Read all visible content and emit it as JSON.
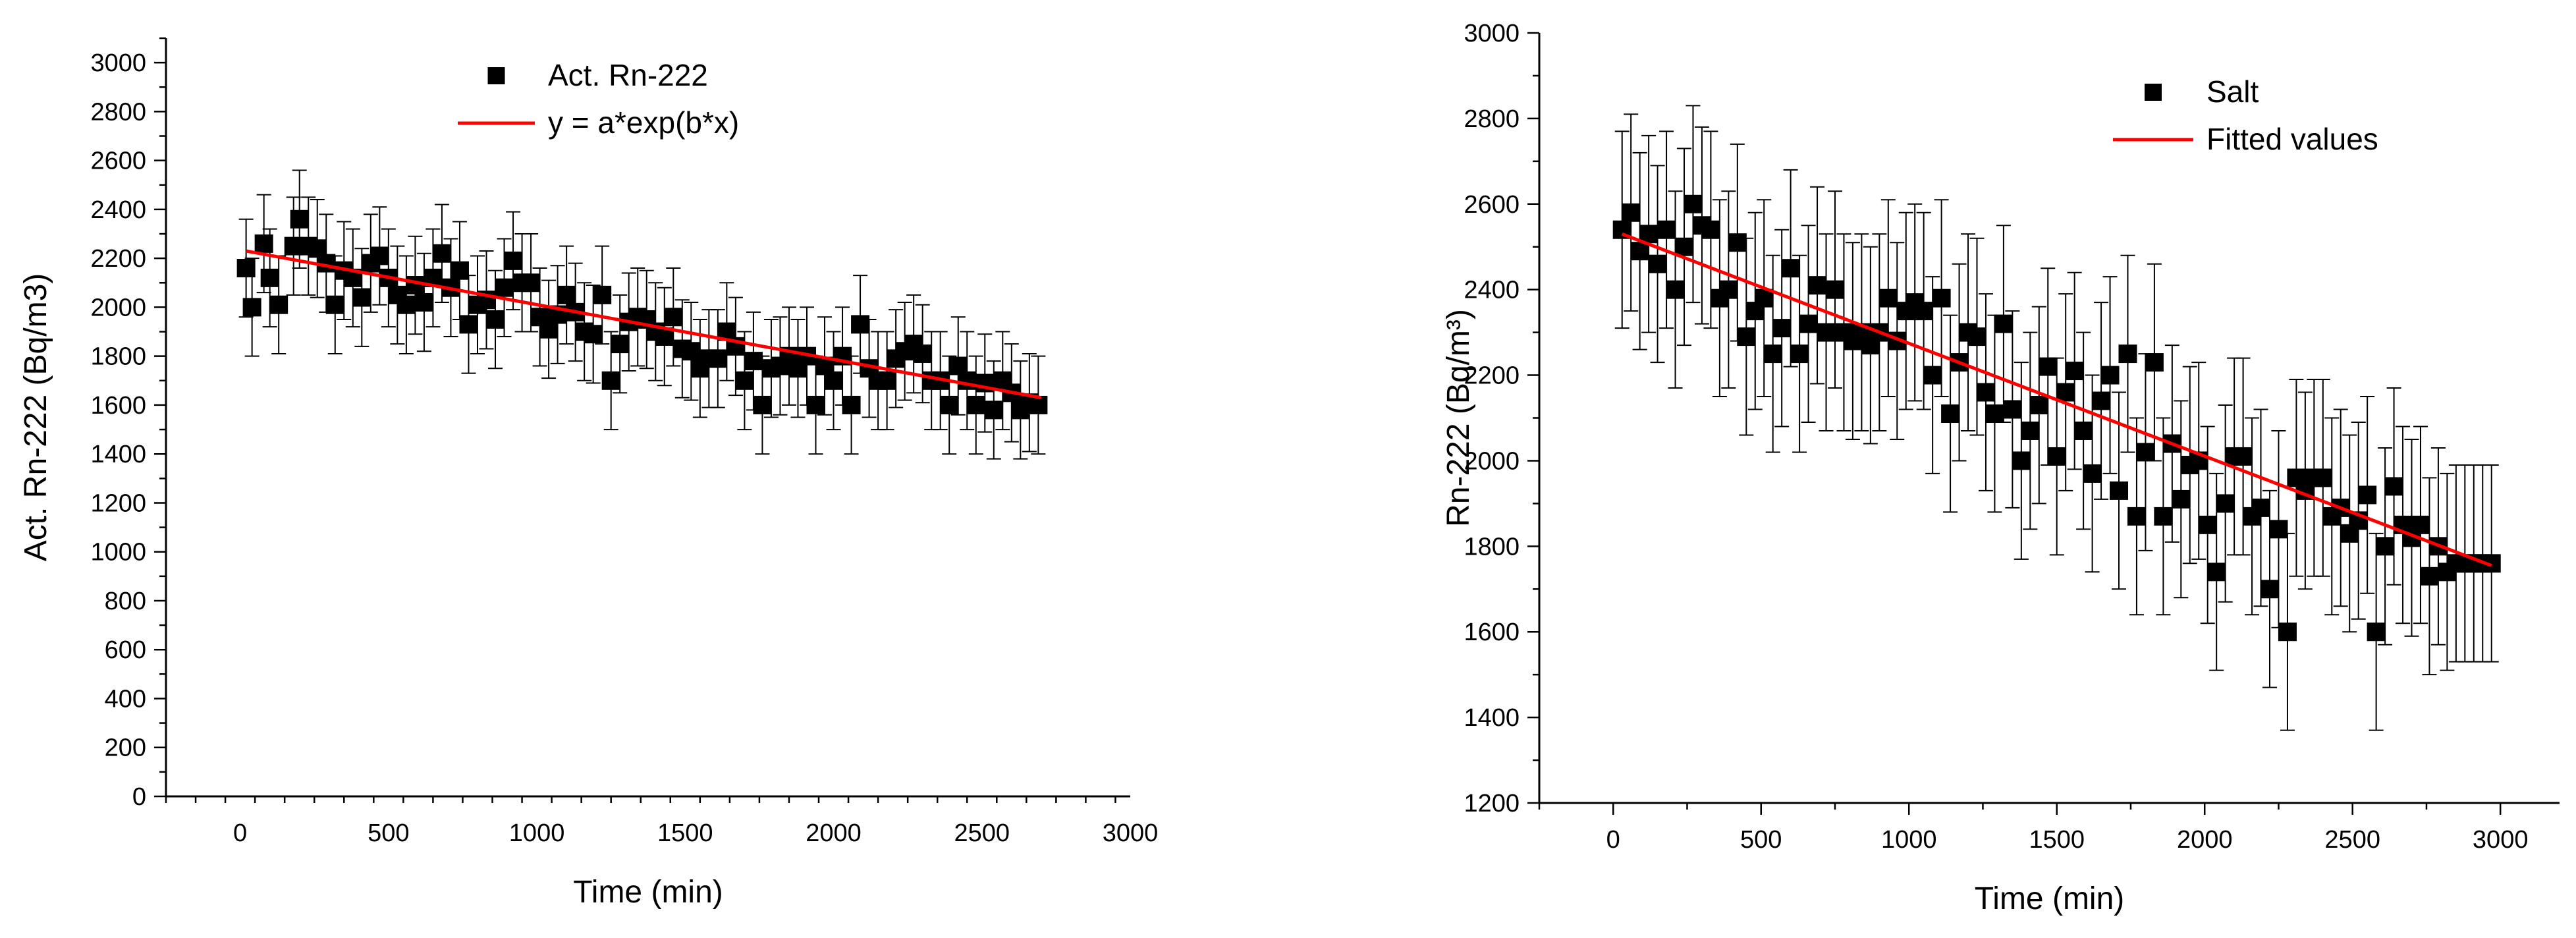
{
  "chart_data": [
    {
      "type": "scatter",
      "xlabel": "Time (min)",
      "ylabel": "Act. Rn-222 (Bq/m3)",
      "xlim": [
        -250,
        3000
      ],
      "ylim": [
        0,
        3100
      ],
      "xticks": [
        0,
        500,
        1000,
        1500,
        2000,
        2500,
        3000
      ],
      "yticks": [
        0,
        200,
        400,
        600,
        800,
        1000,
        1200,
        1400,
        1600,
        1800,
        2000,
        2200,
        2400,
        2600,
        2800,
        3000
      ],
      "legend": {
        "position": "top-center",
        "entries": [
          "Act. Rn-222",
          "y = a*exp(b*x)"
        ]
      },
      "series": [
        {
          "name": "Act. Rn-222",
          "kind": "scatter-errorbar",
          "color": "#000000",
          "x": [
            20,
            40,
            80,
            100,
            130,
            180,
            200,
            230,
            260,
            290,
            320,
            350,
            380,
            410,
            440,
            470,
            500,
            530,
            560,
            590,
            620,
            650,
            680,
            710,
            740,
            770,
            800,
            830,
            860,
            890,
            920,
            950,
            980,
            1010,
            1040,
            1070,
            1100,
            1130,
            1160,
            1190,
            1220,
            1250,
            1280,
            1310,
            1340,
            1370,
            1400,
            1430,
            1460,
            1490,
            1520,
            1550,
            1580,
            1610,
            1640,
            1670,
            1700,
            1730,
            1760,
            1790,
            1820,
            1850,
            1880,
            1910,
            1940,
            1970,
            2000,
            2030,
            2060,
            2090,
            2120,
            2150,
            2180,
            2210,
            2240,
            2270,
            2300,
            2330,
            2360,
            2390,
            2420,
            2450,
            2480,
            2510,
            2540,
            2570,
            2600,
            2630,
            2660,
            2690
          ],
          "y": [
            2160,
            2000,
            2260,
            2120,
            2010,
            2250,
            2360,
            2250,
            2240,
            2180,
            2010,
            2150,
            2120,
            2040,
            2180,
            2210,
            2120,
            2050,
            2010,
            2090,
            2020,
            2120,
            2220,
            2080,
            2150,
            1930,
            2010,
            2030,
            1950,
            2080,
            2190,
            2100,
            2100,
            1960,
            1910,
            1970,
            2050,
            1980,
            1900,
            1890,
            2050,
            1700,
            1850,
            1940,
            1960,
            1950,
            1900,
            1880,
            1960,
            1830,
            1820,
            1750,
            1790,
            1790,
            1900,
            1840,
            1700,
            1780,
            1600,
            1750,
            1760,
            1800,
            1750,
            1800,
            1600,
            1760,
            1700,
            1800,
            1600,
            1930,
            1750,
            1700,
            1700,
            1790,
            1820,
            1850,
            1810,
            1700,
            1700,
            1600,
            1760,
            1700,
            1600,
            1690,
            1580,
            1700,
            1650,
            1580,
            1610,
            1600
          ],
          "yerr": 200
        },
        {
          "name": "y = a*exp(b*x)",
          "kind": "line",
          "color": "#ff0000",
          "x": [
            20,
            2700
          ],
          "y": [
            2230,
            1630
          ]
        }
      ]
    },
    {
      "type": "scatter",
      "xlabel": "Time (min)",
      "ylabel": "Rn-222 (Bq/m³)",
      "xlim": [
        -250,
        3200
      ],
      "ylim": [
        1200,
        3000
      ],
      "xticks": [
        0,
        500,
        1000,
        1500,
        2000,
        2500,
        3000
      ],
      "yticks": [
        1200,
        1400,
        1600,
        1800,
        2000,
        2200,
        2400,
        2600,
        2800,
        3000
      ],
      "legend": {
        "position": "top-right",
        "entries": [
          "Salt",
          "Fitted values"
        ]
      },
      "series": [
        {
          "name": "Salt",
          "kind": "scatter-errorbar",
          "color": "#000000",
          "x": [
            30,
            60,
            90,
            120,
            150,
            180,
            210,
            240,
            270,
            300,
            330,
            360,
            390,
            420,
            450,
            480,
            510,
            540,
            570,
            600,
            630,
            660,
            690,
            720,
            750,
            780,
            810,
            840,
            870,
            900,
            930,
            960,
            990,
            1020,
            1050,
            1080,
            1110,
            1140,
            1170,
            1200,
            1230,
            1260,
            1290,
            1320,
            1350,
            1380,
            1410,
            1440,
            1470,
            1500,
            1530,
            1560,
            1590,
            1620,
            1650,
            1680,
            1710,
            1740,
            1770,
            1800,
            1830,
            1860,
            1890,
            1920,
            1950,
            1980,
            2010,
            2040,
            2070,
            2100,
            2130,
            2160,
            2190,
            2220,
            2250,
            2280,
            2310,
            2340,
            2370,
            2400,
            2430,
            2460,
            2490,
            2520,
            2550,
            2580,
            2610,
            2640,
            2670,
            2700,
            2730,
            2760,
            2790,
            2820,
            2850,
            2880,
            2910,
            2940,
            2970
          ],
          "y": [
            2540,
            2580,
            2490,
            2530,
            2460,
            2540,
            2400,
            2500,
            2600,
            2550,
            2540,
            2380,
            2400,
            2510,
            2290,
            2350,
            2380,
            2250,
            2310,
            2450,
            2250,
            2320,
            2410,
            2300,
            2400,
            2300,
            2280,
            2300,
            2270,
            2300,
            2380,
            2280,
            2350,
            2370,
            2350,
            2200,
            2380,
            2110,
            2230,
            2300,
            2290,
            2160,
            2110,
            2320,
            2120,
            2000,
            2070,
            2130,
            2220,
            2010,
            2160,
            2210,
            2070,
            1970,
            2140,
            2200,
            1930,
            2250,
            1870,
            2020,
            2230,
            1870,
            2040,
            1910,
            1990,
            2000,
            1850,
            1740,
            1900,
            2010,
            2010,
            1870,
            1890,
            1700,
            1840,
            1600,
            1960,
            1930,
            1960,
            1960,
            1870,
            1890,
            1830,
            1860,
            1920,
            1600,
            1800,
            1940,
            1850,
            1820,
            1850,
            1730,
            1800,
            1740,
            1760,
            1760,
            1760,
            1760,
            1760
          ],
          "yerr": 230
        },
        {
          "name": "Fitted values",
          "kind": "line",
          "color": "#ff0000",
          "x": [
            30,
            2970
          ],
          "y": [
            2530,
            1755
          ]
        }
      ]
    }
  ]
}
